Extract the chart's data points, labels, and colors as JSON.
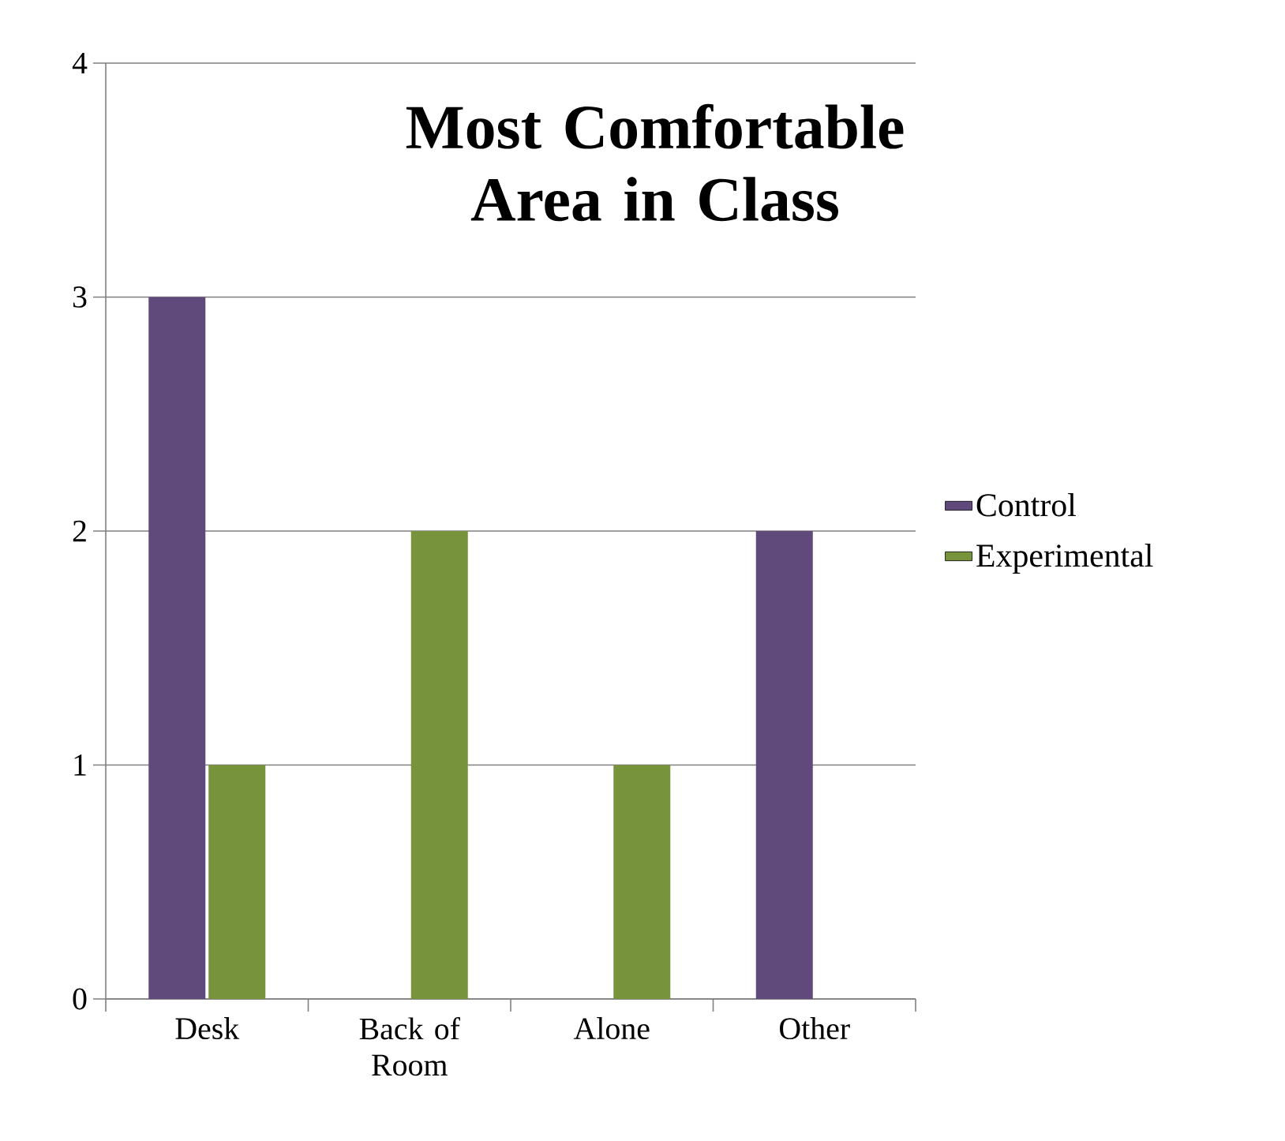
{
  "chart_data": {
    "type": "bar",
    "title": "Most Comfortable Area in Class",
    "categories": [
      "Desk",
      "Back of Room",
      "Alone",
      "Other"
    ],
    "series": [
      {
        "name": "Control",
        "color": "#604a7b",
        "values": [
          3,
          0,
          0,
          2
        ]
      },
      {
        "name": "Experimental",
        "color": "#77933c",
        "values": [
          1,
          2,
          1,
          0
        ]
      }
    ],
    "ylim": [
      0,
      4
    ],
    "yticks": [
      0,
      1,
      2,
      3,
      4
    ],
    "grid": "y",
    "legend": "right"
  }
}
